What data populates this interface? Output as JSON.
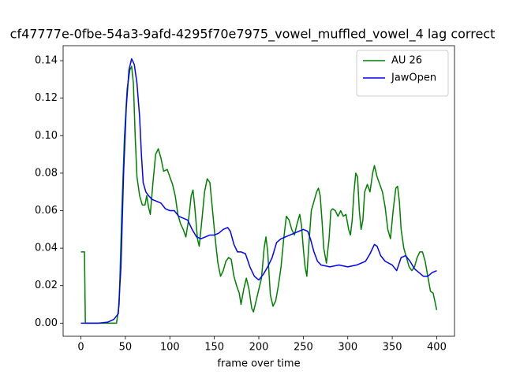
{
  "chart_data": {
    "type": "line",
    "title": "cf47777e-0fbe-54a3-9afd-4295f70e7975_vowel_muffled_vowel_4  lag correct",
    "xlabel": "frame over time",
    "xlim": [
      -20,
      420
    ],
    "ylim": [
      -0.007,
      0.148
    ],
    "xticks": [
      0,
      50,
      100,
      150,
      200,
      250,
      300,
      350,
      400
    ],
    "yticks": [
      {
        "value": 0,
        "label": "0.00"
      },
      {
        "value": 0.02,
        "label": "0.02"
      },
      {
        "value": 0.04,
        "label": "0.04"
      },
      {
        "value": 0.06,
        "label": "0.06"
      },
      {
        "value": 0.08,
        "label": "0.08"
      },
      {
        "value": 0.1,
        "label": "0.10"
      },
      {
        "value": 0.12,
        "label": "0.12"
      },
      {
        "value": 0.14,
        "label": "0.14"
      }
    ],
    "legend": "upper right",
    "series": [
      {
        "name": "AU 26",
        "color": "#008000",
        "x": [
          0,
          4,
          5,
          40,
          43,
          46,
          49,
          52,
          55,
          57,
          59,
          61,
          63,
          66,
          69,
          72,
          74,
          76,
          78,
          81,
          84,
          87,
          90,
          93,
          97,
          100,
          103,
          106,
          109,
          112,
          115,
          118,
          121,
          124,
          126,
          128,
          131,
          133,
          136,
          139,
          142,
          145,
          148,
          151,
          154,
          157,
          160,
          163,
          166,
          169,
          172,
          175,
          178,
          180,
          183,
          186,
          189,
          192,
          194,
          197,
          200,
          203,
          206,
          208,
          210,
          213,
          216,
          219,
          222,
          225,
          228,
          231,
          234,
          237,
          240,
          243,
          246,
          248,
          250,
          252,
          254,
          256,
          259,
          262,
          265,
          267,
          269,
          271,
          273,
          276,
          279,
          281,
          283,
          286,
          289,
          292,
          295,
          298,
          301,
          303,
          305,
          307,
          309,
          311,
          313,
          315,
          317,
          319,
          322,
          325,
          328,
          330,
          333,
          336,
          339,
          342,
          345,
          348,
          351,
          354,
          356,
          358,
          360,
          363,
          366,
          369,
          372,
          375,
          378,
          381,
          384,
          387,
          390,
          393,
          396,
          400
        ],
        "values": [
          0.038,
          0.038,
          0,
          0,
          0.01,
          0.06,
          0.1,
          0.125,
          0.135,
          0.137,
          0.128,
          0.1,
          0.078,
          0.068,
          0.063,
          0.063,
          0.068,
          0.062,
          0.058,
          0.075,
          0.09,
          0.093,
          0.088,
          0.081,
          0.082,
          0.078,
          0.074,
          0.068,
          0.058,
          0.053,
          0.05,
          0.046,
          0.055,
          0.068,
          0.071,
          0.062,
          0.045,
          0.041,
          0.055,
          0.07,
          0.077,
          0.075,
          0.06,
          0.045,
          0.032,
          0.025,
          0.028,
          0.033,
          0.035,
          0.034,
          0.025,
          0.02,
          0.016,
          0.01,
          0.018,
          0.024,
          0.018,
          0.008,
          0.006,
          0.012,
          0.018,
          0.024,
          0.04,
          0.046,
          0.038,
          0.015,
          0.009,
          0.012,
          0.02,
          0.03,
          0.045,
          0.057,
          0.055,
          0.05,
          0.047,
          0.053,
          0.058,
          0.052,
          0.04,
          0.03,
          0.025,
          0.04,
          0.06,
          0.065,
          0.07,
          0.072,
          0.068,
          0.055,
          0.04,
          0.032,
          0.045,
          0.06,
          0.061,
          0.06,
          0.057,
          0.06,
          0.057,
          0.058,
          0.05,
          0.047,
          0.055,
          0.07,
          0.08,
          0.078,
          0.06,
          0.05,
          0.055,
          0.07,
          0.074,
          0.07,
          0.08,
          0.084,
          0.078,
          0.074,
          0.07,
          0.062,
          0.05,
          0.045,
          0.06,
          0.072,
          0.073,
          0.065,
          0.05,
          0.04,
          0.035,
          0.03,
          0.028,
          0.03,
          0.035,
          0.038,
          0.038,
          0.033,
          0.025,
          0.017,
          0.016,
          0.007
        ]
      },
      {
        "name": "JawOpen",
        "color": "#0000ff",
        "x": [
          0,
          20,
          30,
          37,
          42,
          45,
          48,
          51,
          54,
          57,
          60,
          63,
          66,
          68,
          70,
          73,
          76,
          80,
          85,
          90,
          95,
          100,
          105,
          110,
          115,
          120,
          125,
          130,
          135,
          140,
          145,
          150,
          155,
          160,
          165,
          168,
          172,
          176,
          180,
          185,
          190,
          195,
          200,
          205,
          210,
          215,
          220,
          225,
          230,
          235,
          240,
          245,
          250,
          255,
          258,
          262,
          266,
          270,
          280,
          290,
          300,
          310,
          320,
          325,
          330,
          333,
          337,
          342,
          350,
          355,
          360,
          365,
          370,
          375,
          380,
          385,
          390,
          395,
          400
        ],
        "values": [
          0,
          0,
          0.0005,
          0.002,
          0.005,
          0.03,
          0.08,
          0.115,
          0.135,
          0.141,
          0.138,
          0.128,
          0.11,
          0.09,
          0.075,
          0.07,
          0.068,
          0.066,
          0.065,
          0.064,
          0.061,
          0.06,
          0.06,
          0.057,
          0.056,
          0.055,
          0.05,
          0.046,
          0.045,
          0.046,
          0.047,
          0.047,
          0.048,
          0.05,
          0.051,
          0.049,
          0.042,
          0.038,
          0.038,
          0.037,
          0.03,
          0.025,
          0.023,
          0.026,
          0.03,
          0.035,
          0.043,
          0.045,
          0.046,
          0.047,
          0.048,
          0.049,
          0.05,
          0.049,
          0.045,
          0.038,
          0.033,
          0.031,
          0.03,
          0.031,
          0.03,
          0.031,
          0.033,
          0.037,
          0.042,
          0.041,
          0.036,
          0.033,
          0.031,
          0.028,
          0.035,
          0.036,
          0.033,
          0.029,
          0.027,
          0.025,
          0.025,
          0.027,
          0.028
        ]
      }
    ]
  }
}
